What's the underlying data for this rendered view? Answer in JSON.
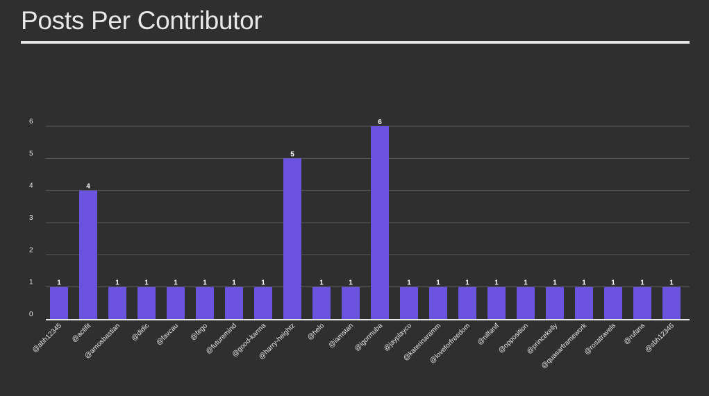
{
  "title": "Posts Per Contributor",
  "colors": {
    "background": "#2f2f2f",
    "bar": "#6b53e0",
    "grid": "#5a5a5a",
    "axis": "#e6e6e6",
    "text": "#e6e6e6"
  },
  "chart_data": {
    "type": "bar",
    "title": "Posts Per Contributor",
    "xlabel": "",
    "ylabel": "",
    "ylim": [
      0,
      6
    ],
    "yticks": [
      0,
      1,
      2,
      3,
      4,
      5,
      6
    ],
    "grid": true,
    "categories": [
      "@abh12345",
      "@actifit",
      "@amosbastian",
      "@didic",
      "@favcau",
      "@fego",
      "@futuremind",
      "@good-karma",
      "@harry-heightz",
      "@helo",
      "@iamstan",
      "@igormuba",
      "@jayplayco",
      "@katerinaramm",
      "@loveforfreedom",
      "@nilfanif",
      "@opposition",
      "@princekelly",
      "@quasarframework",
      "@rosatravels",
      "@rufans",
      "@sbh12345"
    ],
    "values": [
      1,
      4,
      1,
      1,
      1,
      1,
      1,
      1,
      5,
      1,
      1,
      6,
      1,
      1,
      1,
      1,
      1,
      1,
      1,
      1,
      1,
      1
    ]
  }
}
